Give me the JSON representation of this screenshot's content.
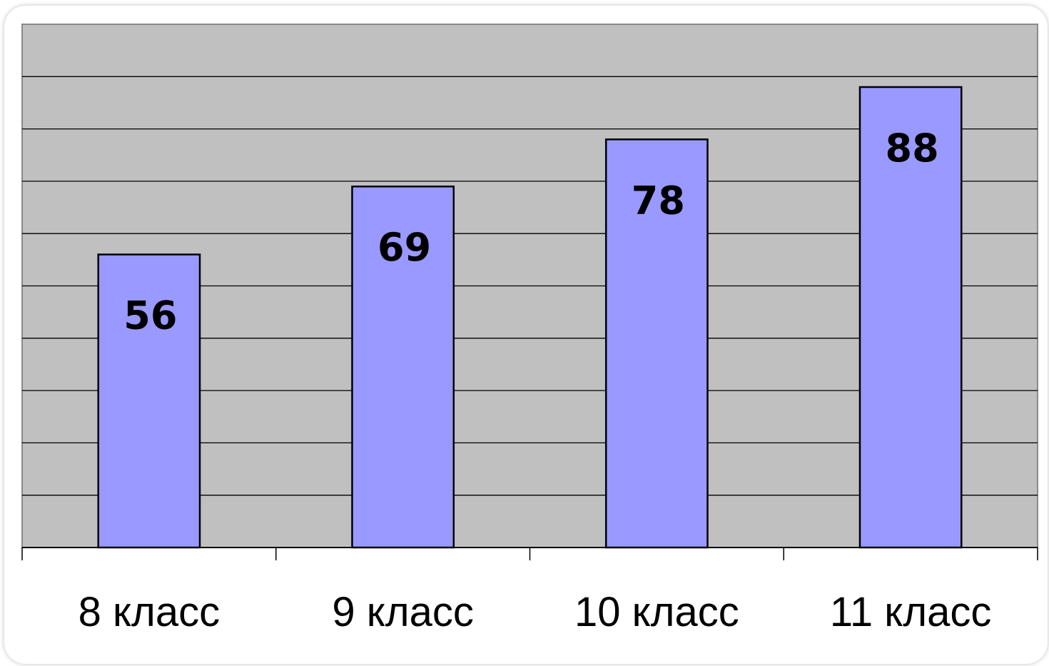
{
  "chart_data": {
    "type": "bar",
    "categories": [
      "8 класс",
      "9 класс",
      "10 класс",
      "11 класс"
    ],
    "values": [
      56,
      69,
      78,
      88
    ],
    "title": "",
    "xlabel": "",
    "ylabel": "",
    "ylim": [
      0,
      100
    ],
    "y_gridline_step": 10,
    "grid": true,
    "legend": "none",
    "data_labels": "inside-top",
    "colors": {
      "plot_background": "#c0c0c0",
      "bar_fill": "#9999ff",
      "bar_stroke": "#000000",
      "gridline": "#000000"
    }
  }
}
